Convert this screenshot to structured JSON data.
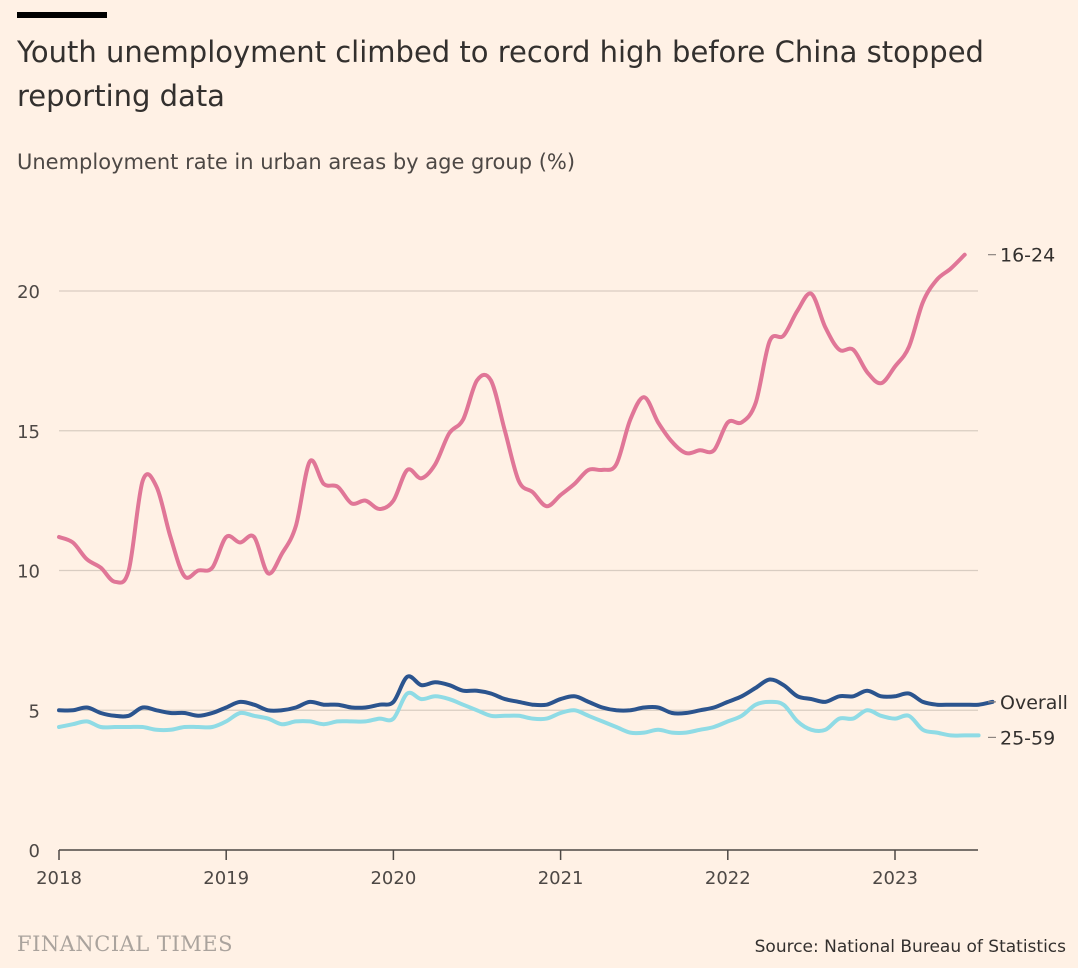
{
  "header": {
    "title": "Youth unemployment climbed to record high before China stopped reporting data",
    "subtitle": "Unemployment rate in urban areas by age group (%)"
  },
  "footer": {
    "logo": "FINANCIAL TIMES",
    "source": "Source: National Bureau of Statistics"
  },
  "chart_data": {
    "type": "line",
    "title": "Youth unemployment climbed to record high before China stopped reporting data",
    "subtitle": "Unemployment rate in urban areas by age group (%)",
    "xlabel": "",
    "ylabel": "",
    "x_start": "2018-01",
    "x_interval": "month",
    "x_ticks": [
      "2018",
      "2019",
      "2020",
      "2021",
      "2022",
      "2023"
    ],
    "y_ticks": [
      0,
      5,
      10,
      15,
      20
    ],
    "ylim": [
      0,
      22
    ],
    "grid": true,
    "legend": "inline-right",
    "series": [
      {
        "name": "16-24",
        "color": "#e07697",
        "values": [
          11.2,
          11.0,
          10.4,
          10.1,
          9.6,
          10.0,
          13.2,
          13.0,
          11.2,
          9.8,
          10.0,
          10.1,
          11.2,
          11.0,
          11.2,
          9.9,
          10.6,
          11.6,
          13.9,
          13.1,
          13.0,
          12.4,
          12.5,
          12.2,
          12.5,
          13.6,
          13.3,
          13.8,
          14.9,
          15.4,
          16.8,
          16.8,
          15.0,
          13.2,
          12.8,
          12.3,
          12.7,
          13.1,
          13.6,
          13.6,
          13.8,
          15.4,
          16.2,
          15.3,
          14.6,
          14.2,
          14.3,
          14.3,
          15.3,
          15.3,
          16.0,
          18.2,
          18.4,
          19.3,
          19.9,
          18.7,
          17.9,
          17.9,
          17.1,
          16.7,
          17.3,
          18.0,
          19.6,
          20.4,
          20.8,
          21.3
        ]
      },
      {
        "name": "Overall",
        "color": "#2b548e",
        "values": [
          5.0,
          5.0,
          5.1,
          4.9,
          4.8,
          4.8,
          5.1,
          5.0,
          4.9,
          4.9,
          4.8,
          4.9,
          5.1,
          5.3,
          5.2,
          5.0,
          5.0,
          5.1,
          5.3,
          5.2,
          5.2,
          5.1,
          5.1,
          5.2,
          5.3,
          6.2,
          5.9,
          6.0,
          5.9,
          5.7,
          5.7,
          5.6,
          5.4,
          5.3,
          5.2,
          5.2,
          5.4,
          5.5,
          5.3,
          5.1,
          5.0,
          5.0,
          5.1,
          5.1,
          4.9,
          4.9,
          5.0,
          5.1,
          5.3,
          5.5,
          5.8,
          6.1,
          5.9,
          5.5,
          5.4,
          5.3,
          5.5,
          5.5,
          5.7,
          5.5,
          5.5,
          5.6,
          5.3,
          5.2,
          5.2,
          5.2,
          5.2,
          5.3
        ]
      },
      {
        "name": "25-59",
        "color": "#8fdbe5",
        "values": [
          4.4,
          4.5,
          4.6,
          4.4,
          4.4,
          4.4,
          4.4,
          4.3,
          4.3,
          4.4,
          4.4,
          4.4,
          4.6,
          4.9,
          4.8,
          4.7,
          4.5,
          4.6,
          4.6,
          4.5,
          4.6,
          4.6,
          4.6,
          4.7,
          4.7,
          5.6,
          5.4,
          5.5,
          5.4,
          5.2,
          5.0,
          4.8,
          4.8,
          4.8,
          4.7,
          4.7,
          4.9,
          5.0,
          4.8,
          4.6,
          4.4,
          4.2,
          4.2,
          4.3,
          4.2,
          4.2,
          4.3,
          4.4,
          4.6,
          4.8,
          5.2,
          5.3,
          5.2,
          4.6,
          4.3,
          4.3,
          4.7,
          4.7,
          5.0,
          4.8,
          4.7,
          4.8,
          4.3,
          4.2,
          4.1,
          4.1,
          4.1
        ]
      }
    ]
  }
}
